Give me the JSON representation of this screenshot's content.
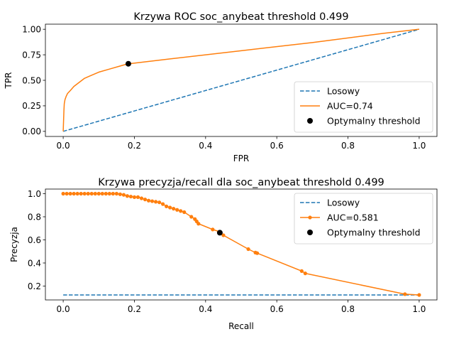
{
  "chart_data": [
    {
      "type": "line",
      "title": "Krzywa ROC soc_anybeat threshold  0.499",
      "xlabel": "FPR",
      "ylabel": "TPR",
      "xlim": [
        -0.05,
        1.05
      ],
      "ylim": [
        -0.05,
        1.05
      ],
      "xticks": [
        "0.0",
        "0.2",
        "0.4",
        "0.6",
        "0.8",
        "1.0"
      ],
      "yticks": [
        "0.00",
        "0.25",
        "0.50",
        "0.75",
        "1.00"
      ],
      "legend_position": "lower-right",
      "series": [
        {
          "name": "Losowy",
          "style": "dashed",
          "color": "#1f77b4",
          "x": [
            0.0,
            1.0
          ],
          "y": [
            0.0,
            1.0
          ]
        },
        {
          "name": "AUC=0.74",
          "style": "solid",
          "color": "#ff7f0e",
          "x": [
            0.0,
            0.001,
            0.002,
            0.003,
            0.005,
            0.008,
            0.012,
            0.02,
            0.03,
            0.045,
            0.06,
            0.08,
            0.1,
            0.13,
            0.16,
            0.18,
            0.3,
            0.5,
            0.7,
            0.9,
            1.0
          ],
          "y": [
            0.0,
            0.1,
            0.2,
            0.27,
            0.31,
            0.34,
            0.37,
            0.4,
            0.44,
            0.48,
            0.52,
            0.55,
            0.58,
            0.61,
            0.64,
            0.66,
            0.71,
            0.79,
            0.87,
            0.96,
            1.0
          ]
        },
        {
          "name": "Optymalny threshold",
          "style": "point",
          "color": "#000000",
          "x": [
            0.183
          ],
          "y": [
            0.662
          ]
        }
      ]
    },
    {
      "type": "line",
      "title": "Krzywa precyzja/recall dla soc_anybeat threshold  0.499",
      "xlabel": "Recall",
      "ylabel": "Precyzja",
      "xlim": [
        -0.05,
        1.05
      ],
      "ylim": [
        0.08,
        1.04
      ],
      "xticks": [
        "0.0",
        "0.2",
        "0.4",
        "0.6",
        "0.8",
        "1.0"
      ],
      "yticks": [
        "0.2",
        "0.4",
        "0.6",
        "0.8",
        "1.0"
      ],
      "legend_position": "upper-right",
      "series": [
        {
          "name": "Losowy",
          "style": "dashed",
          "color": "#1f77b4",
          "x": [
            0.0,
            1.0
          ],
          "y": [
            0.123,
            0.123
          ]
        },
        {
          "name": "AUC=0.581",
          "style": "line-marker",
          "color": "#ff7f0e",
          "x": [
            0.0,
            0.01,
            0.02,
            0.03,
            0.04,
            0.05,
            0.06,
            0.07,
            0.08,
            0.09,
            0.1,
            0.11,
            0.12,
            0.13,
            0.14,
            0.15,
            0.16,
            0.17,
            0.18,
            0.19,
            0.2,
            0.21,
            0.22,
            0.23,
            0.24,
            0.25,
            0.26,
            0.27,
            0.28,
            0.29,
            0.3,
            0.31,
            0.32,
            0.33,
            0.34,
            0.36,
            0.37,
            0.375,
            0.38,
            0.42,
            0.44,
            0.45,
            0.52,
            0.54,
            0.545,
            0.67,
            0.68,
            0.96,
            1.0
          ],
          "y": [
            1.0,
            1.0,
            1.0,
            1.0,
            1.0,
            1.0,
            1.0,
            1.0,
            1.0,
            1.0,
            1.0,
            1.0,
            1.0,
            1.0,
            1.0,
            1.0,
            0.995,
            0.99,
            0.98,
            0.975,
            0.97,
            0.97,
            0.96,
            0.95,
            0.94,
            0.935,
            0.93,
            0.925,
            0.91,
            0.89,
            0.88,
            0.87,
            0.86,
            0.85,
            0.84,
            0.8,
            0.78,
            0.76,
            0.74,
            0.69,
            0.67,
            0.64,
            0.52,
            0.49,
            0.485,
            0.33,
            0.31,
            0.13,
            0.123
          ]
        },
        {
          "name": "Optymalny threshold",
          "style": "point",
          "color": "#000000",
          "x": [
            0.44
          ],
          "y": [
            0.662
          ]
        }
      ]
    }
  ]
}
